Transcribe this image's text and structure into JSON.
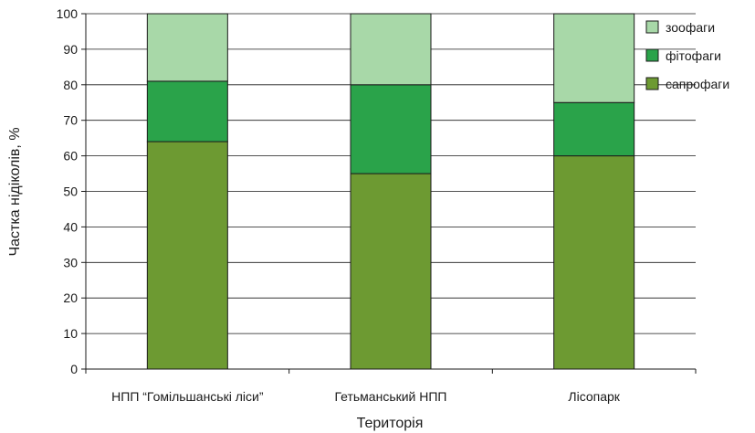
{
  "chart_data": {
    "type": "bar",
    "stacked": true,
    "categories": [
      "НПП “Гомільшанські ліси”",
      "Гетьманський НПП",
      "Лісопарк"
    ],
    "series": [
      {
        "name": "сапрофаги",
        "values": [
          64,
          55,
          60
        ],
        "color": "#6d9a32"
      },
      {
        "name": "фітофаги",
        "values": [
          17,
          25,
          15
        ],
        "color": "#2aa34a"
      },
      {
        "name": "зоофаги",
        "values": [
          19,
          20,
          25
        ],
        "color": "#a8d8a8"
      }
    ],
    "legend_order": [
      "зоофаги",
      "фітофаги",
      "сапрофаги"
    ],
    "xlabel": "Територія",
    "ylabel": "Частка нідіколів, %",
    "ylim": [
      0,
      100
    ],
    "yticks": [
      0,
      10,
      20,
      30,
      40,
      50,
      60,
      70,
      80,
      90,
      100
    ],
    "grid": true,
    "legend_position": "top-right"
  }
}
